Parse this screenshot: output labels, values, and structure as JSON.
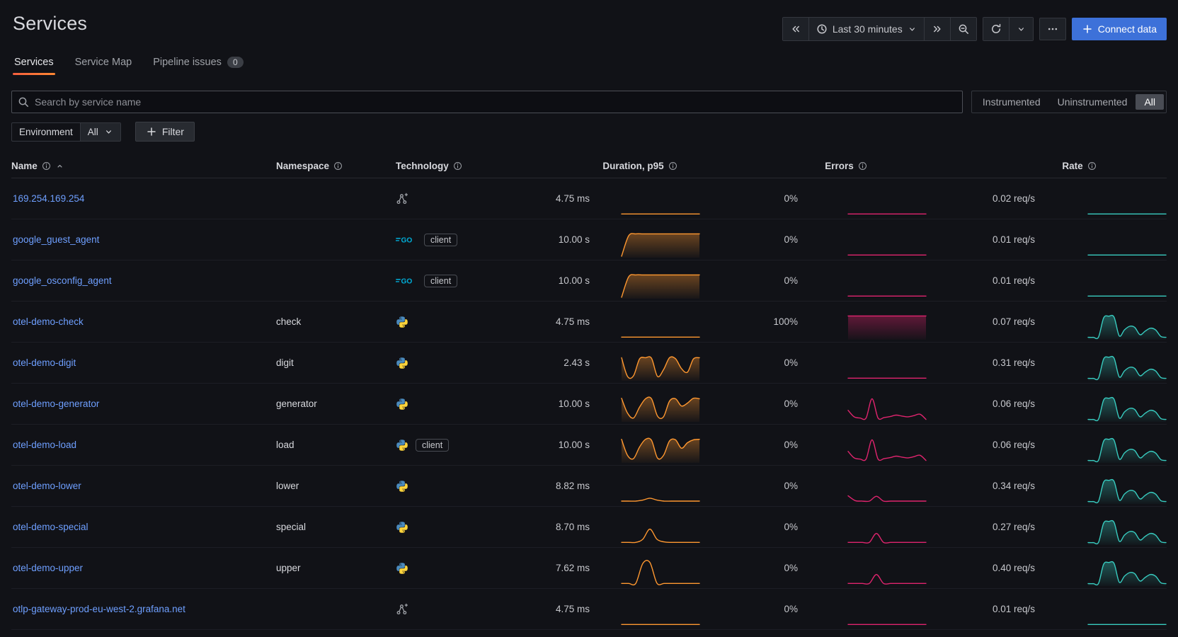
{
  "page": {
    "title": "Services"
  },
  "toolbar": {
    "time_label": "Last 30 minutes",
    "connect_label": "Connect data",
    "icons": [
      "double-chevron-left-icon",
      "clock-icon",
      "chevron-down-icon",
      "double-chevron-right-icon",
      "zoom-out-icon",
      "refresh-icon",
      "chevron-down-icon",
      "ellipsis-icon",
      "plus-icon"
    ]
  },
  "tabs": [
    {
      "label": "Services",
      "active": true
    },
    {
      "label": "Service Map",
      "active": false
    },
    {
      "label": "Pipeline issues",
      "active": false,
      "badge": "0"
    }
  ],
  "search": {
    "placeholder": "Search by service name",
    "value": "",
    "icon": "search-icon"
  },
  "instrumentation": {
    "options": [
      "Instrumented",
      "Uninstrumented",
      "All"
    ],
    "selected": "All"
  },
  "filters": {
    "environment_label": "Environment",
    "environment_value": "All",
    "filter_label": "Filter"
  },
  "table": {
    "columns": [
      {
        "label": "Name",
        "info": true,
        "sorted": "asc"
      },
      {
        "label": "Namespace",
        "info": true
      },
      {
        "label": "Technology",
        "info": true
      },
      {
        "label": "Duration, p95",
        "info": true
      },
      {
        "label": "Errors",
        "info": true
      },
      {
        "label": "Rate",
        "info": true
      }
    ],
    "rows": [
      {
        "name": "169.254.169.254",
        "namespace": "",
        "tech": "unknown",
        "badge": "",
        "duration": "4.75 ms",
        "errors": "0%",
        "rate": "0.02 req/s",
        "sparks": {
          "duration": {
            "shape": "flat",
            "fill": false
          },
          "errors": {
            "shape": "flat",
            "fill": false
          },
          "rate": {
            "shape": "flat",
            "fill": false
          }
        }
      },
      {
        "name": "google_guest_agent",
        "namespace": "",
        "tech": "go",
        "badge": "client",
        "duration": "10.00 s",
        "errors": "0%",
        "rate": "0.01 req/s",
        "sparks": {
          "duration": {
            "shape": "plateau",
            "fill": true
          },
          "errors": {
            "shape": "flat",
            "fill": false
          },
          "rate": {
            "shape": "flat",
            "fill": false
          }
        }
      },
      {
        "name": "google_osconfig_agent",
        "namespace": "",
        "tech": "go",
        "badge": "client",
        "duration": "10.00 s",
        "errors": "0%",
        "rate": "0.01 req/s",
        "sparks": {
          "duration": {
            "shape": "plateau",
            "fill": true
          },
          "errors": {
            "shape": "flat",
            "fill": false
          },
          "rate": {
            "shape": "flat",
            "fill": false
          }
        }
      },
      {
        "name": "otel-demo-check",
        "namespace": "check",
        "tech": "python",
        "badge": "",
        "duration": "4.75 ms",
        "errors": "100%",
        "rate": "0.07 req/s",
        "sparks": {
          "duration": {
            "shape": "flat",
            "fill": false
          },
          "errors": {
            "shape": "full",
            "fill": true
          },
          "rate": {
            "shape": "rate_peak",
            "fill": true
          }
        }
      },
      {
        "name": "otel-demo-digit",
        "namespace": "digit",
        "tech": "python",
        "badge": "",
        "duration": "2.43 s",
        "errors": "0%",
        "rate": "0.31 req/s",
        "sparks": {
          "duration": {
            "shape": "wavy1",
            "fill": true
          },
          "errors": {
            "shape": "flat",
            "fill": false
          },
          "rate": {
            "shape": "rate_peak",
            "fill": true
          }
        }
      },
      {
        "name": "otel-demo-generator",
        "namespace": "generator",
        "tech": "python",
        "badge": "",
        "duration": "10.00 s",
        "errors": "0%",
        "rate": "0.06 req/s",
        "sparks": {
          "duration": {
            "shape": "wavy2",
            "fill": true
          },
          "errors": {
            "shape": "err_spike_big",
            "fill": false
          },
          "rate": {
            "shape": "rate_peak",
            "fill": true
          }
        }
      },
      {
        "name": "otel-demo-load",
        "namespace": "load",
        "tech": "python",
        "badge": "client",
        "duration": "10.00 s",
        "errors": "0%",
        "rate": "0.06 req/s",
        "sparks": {
          "duration": {
            "shape": "wavy3",
            "fill": true
          },
          "errors": {
            "shape": "err_spike_big",
            "fill": false
          },
          "rate": {
            "shape": "rate_peak",
            "fill": true
          }
        }
      },
      {
        "name": "otel-demo-lower",
        "namespace": "lower",
        "tech": "python",
        "badge": "",
        "duration": "8.82 ms",
        "errors": "0%",
        "rate": "0.34 req/s",
        "sparks": {
          "duration": {
            "shape": "dur_smallbump",
            "fill": false
          },
          "errors": {
            "shape": "err_dip_spike",
            "fill": false
          },
          "rate": {
            "shape": "rate_peak",
            "fill": true
          }
        }
      },
      {
        "name": "otel-demo-special",
        "namespace": "special",
        "tech": "python",
        "badge": "",
        "duration": "8.70 ms",
        "errors": "0%",
        "rate": "0.27 req/s",
        "sparks": {
          "duration": {
            "shape": "dur_bump",
            "fill": false
          },
          "errors": {
            "shape": "err_small_spike",
            "fill": false
          },
          "rate": {
            "shape": "rate_peak",
            "fill": true
          }
        }
      },
      {
        "name": "otel-demo-upper",
        "namespace": "upper",
        "tech": "python",
        "badge": "",
        "duration": "7.62 ms",
        "errors": "0%",
        "rate": "0.40 req/s",
        "sparks": {
          "duration": {
            "shape": "dur_spike",
            "fill": false
          },
          "errors": {
            "shape": "err_small_spike",
            "fill": false
          },
          "rate": {
            "shape": "rate_peak",
            "fill": true
          }
        }
      },
      {
        "name": "otlp-gateway-prod-eu-west-2.grafana.net",
        "namespace": "",
        "tech": "unknown",
        "badge": "",
        "duration": "4.75 ms",
        "errors": "0%",
        "rate": "0.01 req/s",
        "sparks": {
          "duration": {
            "shape": "flat",
            "fill": false
          },
          "errors": {
            "shape": "flat",
            "fill": false
          },
          "rate": {
            "shape": "flat",
            "fill": false
          }
        }
      }
    ]
  },
  "technology_icons": {
    "python": "python-logo-icon",
    "go": "go-logo-icon",
    "unknown": "service-graph-icon"
  },
  "spark_shapes": {
    "flat": [
      0.05,
      0.05,
      0.05,
      0.05,
      0.05,
      0.05,
      0.05,
      0.05
    ],
    "plateau": [
      0.0,
      0.85,
      0.93,
      0.93,
      0.93,
      0.93,
      0.93,
      0.93,
      0.93,
      0.93,
      0.93,
      0.93
    ],
    "full": [
      0.93,
      0.93,
      0.93,
      0.93,
      0.93,
      0.93,
      0.93,
      0.93,
      0.93,
      0.93,
      0.93,
      0.93
    ],
    "wavy1": [
      0.9,
      0.12,
      0.15,
      0.85,
      0.9,
      0.88,
      0.12,
      0.4,
      0.9,
      0.86,
      0.45,
      0.3,
      0.85,
      0.9
    ],
    "wavy2": [
      0.92,
      0.3,
      0.1,
      0.55,
      0.9,
      0.9,
      0.18,
      0.15,
      0.8,
      0.9,
      0.6,
      0.72,
      0.92,
      0.9
    ],
    "wavy3": [
      0.92,
      0.25,
      0.12,
      0.6,
      0.92,
      0.88,
      0.14,
      0.25,
      0.85,
      0.9,
      0.55,
      0.78,
      0.9,
      0.92
    ],
    "rate_peak": [
      0.04,
      0.04,
      0.05,
      0.85,
      0.92,
      0.88,
      0.1,
      0.35,
      0.5,
      0.45,
      0.15,
      0.3,
      0.42,
      0.35,
      0.08,
      0.04
    ],
    "err_spike_big": [
      0.42,
      0.15,
      0.1,
      0.1,
      0.9,
      0.1,
      0.12,
      0.16,
      0.22,
      0.18,
      0.15,
      0.2,
      0.26,
      0.04
    ],
    "err_dip_spike": [
      0.28,
      0.08,
      0.06,
      0.06,
      0.26,
      0.06,
      0.06,
      0.06,
      0.06,
      0.06,
      0.06,
      0.06
    ],
    "err_small_spike": [
      0.05,
      0.05,
      0.05,
      0.05,
      0.42,
      0.05,
      0.05,
      0.05,
      0.05,
      0.05,
      0.05,
      0.05
    ],
    "dur_smallbump": [
      0.06,
      0.06,
      0.06,
      0.1,
      0.18,
      0.1,
      0.06,
      0.06,
      0.06,
      0.06,
      0.06,
      0.06
    ],
    "dur_bump": [
      0.05,
      0.05,
      0.05,
      0.18,
      0.6,
      0.18,
      0.07,
      0.05,
      0.05,
      0.05,
      0.05,
      0.05
    ],
    "dur_spike": [
      0.05,
      0.05,
      0.05,
      0.88,
      0.92,
      0.06,
      0.05,
      0.05,
      0.05,
      0.05,
      0.05,
      0.05
    ]
  },
  "colors": {
    "duration_spark": "#FF9830",
    "errors_spark": "#E0246E",
    "rate_spark": "#38CCC0",
    "link": "#6E9FFF",
    "primary_button": "#3D71D9",
    "tab_underline_start": "#F55F3E",
    "tab_underline_end": "#FF8833",
    "go_logo": "#00ADD8",
    "python_blue": "#4B8BBE",
    "python_yellow": "#FFD43B"
  }
}
